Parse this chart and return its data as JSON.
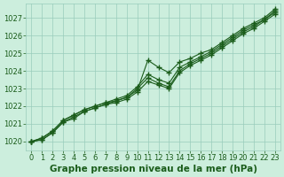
{
  "xlabel": "Graphe pression niveau de la mer (hPa)",
  "ylim": [
    1019.5,
    1027.8
  ],
  "xlim": [
    -0.5,
    23.5
  ],
  "xticks": [
    0,
    1,
    2,
    3,
    4,
    5,
    6,
    7,
    8,
    9,
    10,
    11,
    12,
    13,
    14,
    15,
    16,
    17,
    18,
    19,
    20,
    21,
    22,
    23
  ],
  "yticks": [
    1020,
    1021,
    1022,
    1023,
    1024,
    1025,
    1026,
    1027
  ],
  "bg_color": "#cceedd",
  "grid_color": "#99ccbb",
  "line_color": "#1a5c1a",
  "series": [
    [
      1020.0,
      1020.1,
      1020.5,
      1021.1,
      1021.4,
      1021.7,
      1021.9,
      1022.1,
      1022.3,
      1022.5,
      1022.9,
      1024.6,
      1024.2,
      1023.9,
      1024.5,
      1024.7,
      1025.0,
      1025.2,
      1025.6,
      1026.0,
      1026.4,
      1026.7,
      1027.0,
      1027.5
    ],
    [
      1020.0,
      1020.2,
      1020.6,
      1021.2,
      1021.5,
      1021.8,
      1022.0,
      1022.2,
      1022.4,
      1022.6,
      1023.1,
      1023.8,
      1023.5,
      1023.3,
      1024.2,
      1024.5,
      1024.8,
      1025.1,
      1025.5,
      1025.9,
      1026.3,
      1026.6,
      1026.9,
      1027.4
    ],
    [
      1020.0,
      1020.2,
      1020.6,
      1021.2,
      1021.5,
      1021.8,
      1022.0,
      1022.2,
      1022.3,
      1022.5,
      1023.0,
      1023.6,
      1023.3,
      1023.1,
      1024.0,
      1024.4,
      1024.7,
      1025.0,
      1025.4,
      1025.8,
      1026.2,
      1026.5,
      1026.9,
      1027.3
    ],
    [
      1020.0,
      1020.1,
      1020.5,
      1021.1,
      1021.3,
      1021.7,
      1021.9,
      1022.1,
      1022.2,
      1022.4,
      1022.8,
      1023.4,
      1023.2,
      1023.0,
      1023.9,
      1024.3,
      1024.6,
      1024.9,
      1025.3,
      1025.7,
      1026.1,
      1026.4,
      1026.8,
      1027.2
    ]
  ],
  "marker": "+",
  "markersize": 4,
  "markeredgewidth": 1.0,
  "linewidth": 0.8,
  "font_color": "#1a5c1a",
  "xlabel_fontsize": 7.5,
  "tick_fontsize": 6.0
}
